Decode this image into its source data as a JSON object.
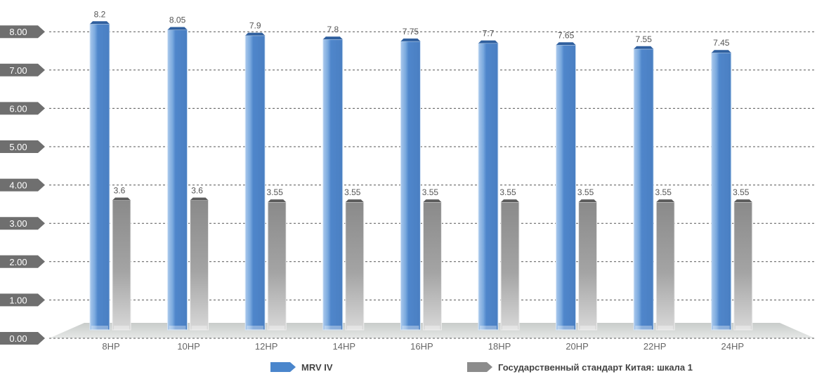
{
  "chart_data": {
    "type": "bar",
    "title": "",
    "xlabel": "",
    "ylabel": "",
    "ylim": [
      0,
      8.5
    ],
    "yticks": [
      "0.00",
      "1.00",
      "2.00",
      "3.00",
      "4.00",
      "5.00",
      "6.00",
      "7.00",
      "8.00"
    ],
    "ytick_values": [
      0,
      1,
      2,
      3,
      4,
      5,
      6,
      7,
      8
    ],
    "categories": [
      "8HP",
      "10HP",
      "12HP",
      "14HP",
      "16HP",
      "18HP",
      "20HP",
      "22HP",
      "24HP"
    ],
    "series": [
      {
        "name": "MRV IV",
        "color": "#4a86cc",
        "values": [
          8.2,
          8.05,
          7.9,
          7.8,
          7.75,
          7.7,
          7.65,
          7.55,
          7.45
        ],
        "labels": [
          "8.2",
          "8.05",
          "7.9",
          "7.8",
          "7.75",
          "7.7",
          "7.65",
          "7.55",
          "7.45"
        ]
      },
      {
        "name": "Государственный стандарт Китая: шкала 1",
        "color": "#8c8c8c",
        "values": [
          3.6,
          3.6,
          3.55,
          3.55,
          3.55,
          3.55,
          3.55,
          3.55,
          3.55
        ],
        "labels": [
          "3.6",
          "3.6",
          "3.55",
          "3.55",
          "3.55",
          "3.55",
          "3.55",
          "3.55",
          "3.55"
        ]
      }
    ],
    "grid": true,
    "legend": "bottom"
  }
}
